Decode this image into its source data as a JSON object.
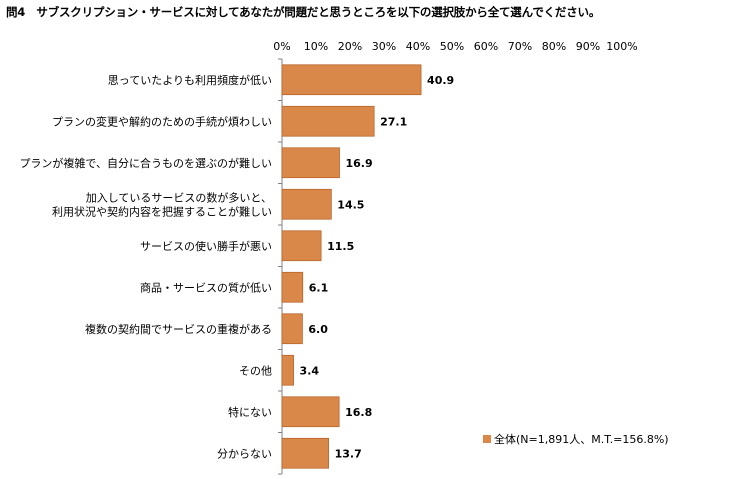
{
  "title": "問4　サブスクリプション・サービスに対してあなたが問題だと思うところを以下の選択肢から全て選んでください。",
  "colors": {
    "bar": "#D9884A",
    "bar_stroke": "#B8652A",
    "axis": "#808080"
  },
  "chart_data": {
    "type": "bar",
    "orientation": "horizontal",
    "xlim": [
      0,
      100
    ],
    "x_ticks": [
      "0%",
      "10%",
      "20%",
      "30%",
      "40%",
      "50%",
      "60%",
      "70%",
      "80%",
      "90%",
      "100%"
    ],
    "categories": [
      "思っていたよりも利用頻度が低い",
      "プランの変更や解約のための手続が煩わしい",
      "プランが複雑で、自分に合うものを選ぶのが難しい",
      "加入しているサービスの数が多いと、\n利用状況や契約内容を把握することが難しい",
      "サービスの使い勝手が悪い",
      "商品・サービスの質が低い",
      "複数の契約間でサービスの重複がある",
      "その他",
      "特にない",
      "分からない"
    ],
    "series": [
      {
        "name": "全体(N=1,891人、M.T.=156.8%)",
        "values": [
          40.9,
          27.1,
          16.9,
          14.5,
          11.5,
          6.1,
          6.0,
          3.4,
          16.8,
          13.7
        ],
        "labels": [
          "40.9",
          "27.1",
          "16.9",
          "14.5",
          "11.5",
          "6.1",
          "6.0",
          "3.4",
          "16.8",
          "13.7"
        ]
      }
    ],
    "grid": false,
    "legend_position": "bottom-right"
  }
}
